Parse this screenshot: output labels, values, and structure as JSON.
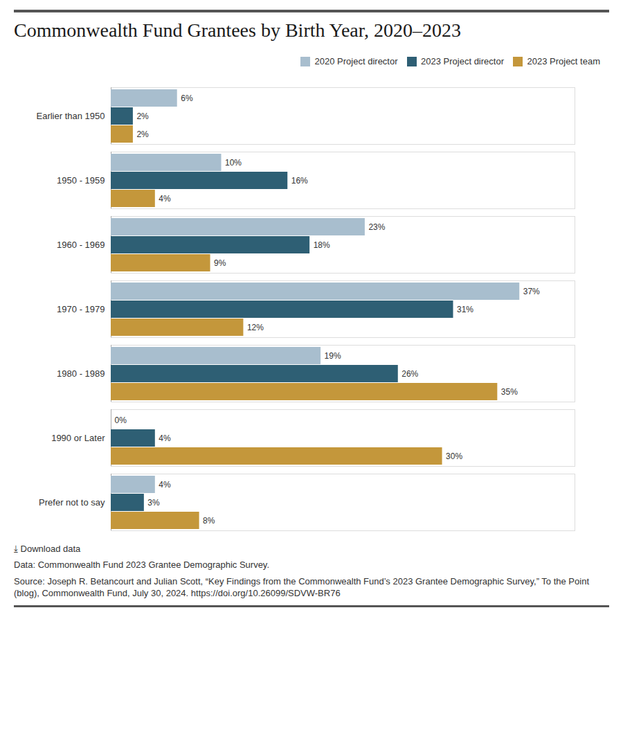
{
  "chart_data": {
    "type": "bar",
    "orientation": "horizontal",
    "title": "Commonwealth Fund Grantees by Birth Year, 2020–2023",
    "categories": [
      "Earlier than 1950",
      "1950 - 1959",
      "1960 - 1969",
      "1970 - 1979",
      "1980 - 1989",
      "1990 or Later",
      "Prefer not to say"
    ],
    "series": [
      {
        "name": "2020 Project director",
        "color": "#a8bece",
        "values": [
          6,
          10,
          23,
          37,
          19,
          0,
          4
        ],
        "value_labels": [
          "6%",
          "10%",
          "23%",
          "37%",
          "19%",
          "0%",
          "4%"
        ]
      },
      {
        "name": "2023 Project director",
        "color": "#2e5f74",
        "values": [
          2,
          16,
          18,
          31,
          26,
          4,
          3
        ],
        "value_labels": [
          "2%",
          "16%",
          "18%",
          "31%",
          "26%",
          "4%",
          "3%"
        ]
      },
      {
        "name": "2023 Project team",
        "color": "#c4973b",
        "values": [
          2,
          4,
          9,
          12,
          35,
          30,
          8
        ],
        "value_labels": [
          "2%",
          "4%",
          "9%",
          "12%",
          "35%",
          "30%",
          "8%"
        ]
      }
    ],
    "xlim": [
      0,
      42
    ],
    "data_labels": true,
    "tick_labels": "y",
    "grid": false,
    "legend": "top-right",
    "annotations": [
      "⤓  Download data",
      "Data: Commonwealth Fund 2023 Grantee Demographic Survey.",
      "Source: Joseph R. Betancourt and Julian Scott, “Key Findings from the Commonwealth Fund’s 2023 Grantee Demographic Survey,” To the Point (blog), Commonwealth Fund, July 30, 2024. https://doi.org/10.26099/SDVW-BR76"
    ]
  }
}
